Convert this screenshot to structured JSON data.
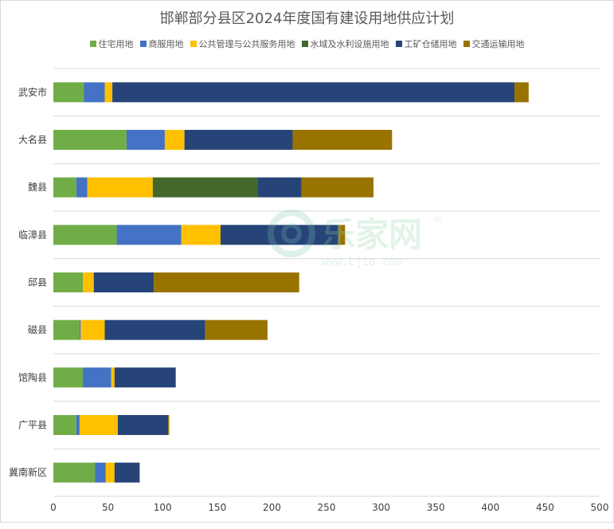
{
  "chart_data": {
    "type": "bar",
    "orientation": "horizontal",
    "stacked": true,
    "title": "邯郸部分县区2024年度国有建设用地供应计划",
    "categories": [
      "武安市",
      "大名县",
      "魏县",
      "临漳县",
      "邱县",
      "磁县",
      "馆陶县",
      "广平县",
      "冀南新区"
    ],
    "series": [
      {
        "name": "住宅用地",
        "color": "#70ad47",
        "values": [
          28,
          67,
          21,
          58,
          27,
          24,
          27,
          21,
          38
        ]
      },
      {
        "name": "商服用地",
        "color": "#4472c4",
        "values": [
          19,
          35,
          10,
          59,
          0,
          1,
          26,
          3,
          10
        ]
      },
      {
        "name": "公共管理与公共服务用地",
        "color": "#ffc000",
        "values": [
          7,
          18,
          60,
          36,
          10,
          22,
          3,
          35,
          8
        ]
      },
      {
        "name": "水域及水利设施用地",
        "color": "#43682b",
        "values": [
          0,
          0,
          96,
          0,
          0,
          0,
          0,
          0,
          0
        ]
      },
      {
        "name": "工矿仓储用地",
        "color": "#264478",
        "values": [
          368,
          99,
          40,
          108,
          55,
          92,
          56,
          46,
          23
        ]
      },
      {
        "name": "交通运输用地",
        "color": "#997300",
        "values": [
          13,
          91,
          66,
          6,
          133,
          57,
          0,
          1,
          0
        ]
      }
    ],
    "xlim": [
      0,
      500
    ],
    "xticks": [
      0,
      50,
      100,
      150,
      200,
      250,
      300,
      350,
      400,
      450,
      500
    ],
    "grid": true,
    "legend_position": "top"
  },
  "watermark": {
    "brand": "乐家网",
    "url": "www.Ljia.com",
    "mark": "®"
  }
}
